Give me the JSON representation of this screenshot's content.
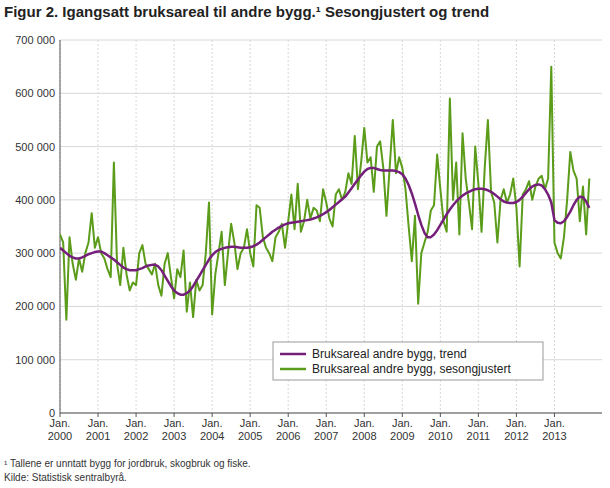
{
  "chart_data": {
    "type": "line",
    "title": "Figur 2. Igangsatt bruksareal til andre bygg.¹ Sesongjustert og trend",
    "footnotes": [
      "¹ Tallene er unntatt bygg for jordbruk, skogbruk og fiske.",
      "Kilde: Statistisk sentralbyrå."
    ],
    "categories": [
      "Jan. 2000",
      null,
      null,
      null,
      null,
      null,
      null,
      null,
      null,
      null,
      null,
      null,
      "Jan. 2001",
      null,
      null,
      null,
      null,
      null,
      null,
      null,
      null,
      null,
      null,
      null,
      "Jan. 2002",
      null,
      null,
      null,
      null,
      null,
      null,
      null,
      null,
      null,
      null,
      null,
      "Jan. 2003",
      null,
      null,
      null,
      null,
      null,
      null,
      null,
      null,
      null,
      null,
      null,
      "Jan. 2004",
      null,
      null,
      null,
      null,
      null,
      null,
      null,
      null,
      null,
      null,
      null,
      "Jan. 2005",
      null,
      null,
      null,
      null,
      null,
      null,
      null,
      null,
      null,
      null,
      null,
      "Jan. 2006",
      null,
      null,
      null,
      null,
      null,
      null,
      null,
      null,
      null,
      null,
      null,
      "Jan. 2007",
      null,
      null,
      null,
      null,
      null,
      null,
      null,
      null,
      null,
      null,
      null,
      "Jan. 2008",
      null,
      null,
      null,
      null,
      null,
      null,
      null,
      null,
      null,
      null,
      null,
      "Jan. 2009",
      null,
      null,
      null,
      null,
      null,
      null,
      null,
      null,
      null,
      null,
      null,
      "Jan. 2010",
      null,
      null,
      null,
      null,
      null,
      null,
      null,
      null,
      null,
      null,
      null,
      "Jan. 2011",
      null,
      null,
      null,
      null,
      null,
      null,
      null,
      null,
      null,
      null,
      null,
      "Jan. 2012",
      null,
      null,
      null,
      null,
      null,
      null,
      null,
      null,
      null,
      null,
      null,
      "Jan. 2013",
      null,
      null,
      null,
      null,
      null,
      null,
      null,
      null,
      null,
      null,
      null
    ],
    "series": [
      {
        "name": "Bruksareal andre bygg, trend",
        "color": "#74207a",
        "values": [
          310000,
          305000,
          300000,
          295000,
          292000,
          290000,
          290000,
          292000,
          295000,
          298000,
          300000,
          302000,
          303000,
          303000,
          300000,
          296000,
          292000,
          288000,
          283000,
          278000,
          273000,
          270000,
          268000,
          268000,
          268000,
          270000,
          272000,
          275000,
          277000,
          278000,
          278000,
          275000,
          268000,
          258000,
          248000,
          238000,
          230000,
          225000,
          222000,
          222000,
          225000,
          230000,
          238000,
          248000,
          258000,
          268000,
          278000,
          288000,
          296000,
          302000,
          306000,
          308000,
          310000,
          311000,
          312000,
          312000,
          311000,
          310000,
          310000,
          310000,
          311000,
          313000,
          316000,
          320000,
          325000,
          330000,
          335000,
          340000,
          344000,
          348000,
          351000,
          354000,
          356000,
          357000,
          358000,
          359000,
          360000,
          361000,
          362000,
          363000,
          365000,
          367000,
          370000,
          373000,
          377000,
          381000,
          386000,
          391000,
          396000,
          401000,
          406000,
          414000,
          422000,
          430000,
          438000,
          446000,
          453000,
          458000,
          460000,
          460000,
          458000,
          456000,
          455000,
          455000,
          455000,
          455000,
          454000,
          452000,
          448000,
          440000,
          428000,
          412000,
          393000,
          372000,
          353000,
          338000,
          330000,
          330000,
          335000,
          343000,
          353000,
          363000,
          373000,
          382000,
          390000,
          397000,
          403000,
          408000,
          412000,
          415000,
          418000,
          420000,
          421000,
          421000,
          420000,
          418000,
          415000,
          411000,
          406000,
          401000,
          397000,
          395000,
          394000,
          394000,
          396000,
          400000,
          406000,
          413000,
          420000,
          425000,
          428000,
          429000,
          427000,
          420000,
          410000,
          395000,
          362000,
          357000,
          356000,
          360000,
          368000,
          378000,
          390000,
          400000,
          406000,
          405000,
          397000,
          385000
        ]
      },
      {
        "name": "Bruksareal andre bygg, sesongjustert",
        "color": "#5b9c1a",
        "values": [
          335000,
          320000,
          175000,
          330000,
          280000,
          250000,
          290000,
          265000,
          300000,
          320000,
          375000,
          310000,
          330000,
          300000,
          290000,
          270000,
          255000,
          470000,
          280000,
          240000,
          310000,
          260000,
          230000,
          245000,
          240000,
          300000,
          315000,
          280000,
          270000,
          260000,
          280000,
          240000,
          220000,
          280000,
          300000,
          255000,
          215000,
          270000,
          255000,
          305000,
          190000,
          245000,
          180000,
          250000,
          230000,
          240000,
          300000,
          395000,
          185000,
          260000,
          300000,
          340000,
          240000,
          300000,
          355000,
          320000,
          270000,
          300000,
          310000,
          345000,
          300000,
          275000,
          390000,
          385000,
          330000,
          310000,
          300000,
          285000,
          330000,
          340000,
          355000,
          310000,
          360000,
          410000,
          345000,
          430000,
          340000,
          360000,
          400000,
          365000,
          385000,
          380000,
          360000,
          420000,
          395000,
          365000,
          350000,
          410000,
          420000,
          400000,
          415000,
          450000,
          430000,
          520000,
          420000,
          470000,
          535000,
          470000,
          480000,
          415000,
          500000,
          510000,
          460000,
          370000,
          460000,
          550000,
          450000,
          480000,
          460000,
          420000,
          350000,
          285000,
          370000,
          205000,
          300000,
          320000,
          340000,
          380000,
          390000,
          485000,
          420000,
          360000,
          340000,
          590000,
          400000,
          470000,
          335000,
          525000,
          440000,
          395000,
          345000,
          500000,
          430000,
          340000,
          460000,
          550000,
          415000,
          395000,
          320000,
          400000,
          420000,
          395000,
          410000,
          440000,
          385000,
          275000,
          410000,
          420000,
          435000,
          400000,
          425000,
          440000,
          445000,
          420000,
          440000,
          650000,
          320000,
          300000,
          290000,
          330000,
          400000,
          490000,
          455000,
          440000,
          360000,
          425000,
          335000,
          440000
        ]
      }
    ],
    "ylim": [
      0,
      700000
    ],
    "yticks": [
      0,
      {
        "value": 100000,
        "label": "100 000"
      },
      {
        "value": 200000,
        "label": "200 000"
      },
      {
        "value": 300000,
        "label": "300 000"
      },
      {
        "value": 400000,
        "label": "400 000"
      },
      {
        "value": 500000,
        "label": "500 000"
      },
      {
        "value": 600000,
        "label": "600 000"
      },
      {
        "value": 700000,
        "label": "700 000"
      }
    ],
    "grid": true,
    "legend": "bottom-right"
  }
}
